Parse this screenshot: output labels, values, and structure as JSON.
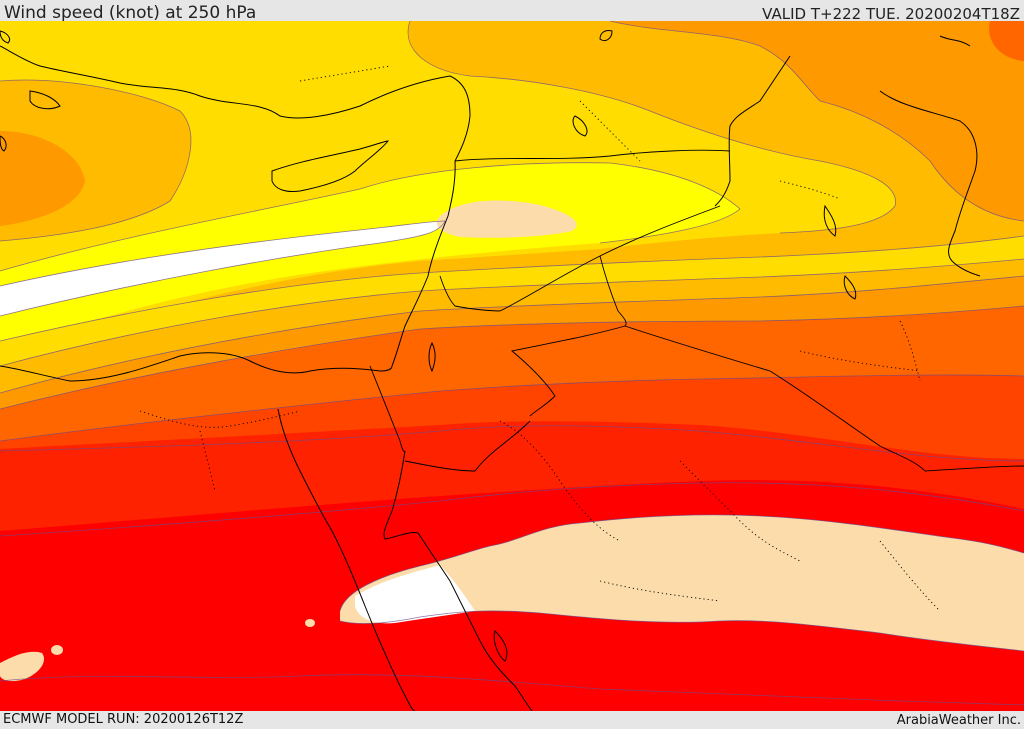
{
  "header": {
    "title": "Wind speed (knot) at 250 hPa",
    "valid": "VALID T+222 TUE. 20200204T18Z"
  },
  "footer": {
    "model_run": "ECMWF MODEL RUN: 20200126T12Z",
    "credit": "ArabiaWeather Inc."
  },
  "map": {
    "variable": "Wind speed",
    "unit": "knot",
    "level_hpa": 250,
    "region": "Eastern Mediterranean, Levant, Egypt and northern Arabia",
    "palette": {
      "band_white": "#ffffff",
      "band_peach": "#fcdcab",
      "band_yellow_bright": "#ffff00",
      "band_yellow": "#ffdd00",
      "band_gold": "#ffbb00",
      "band_orange_light": "#ff9900",
      "band_orange": "#ff6600",
      "band_orange_red": "#ff4400",
      "band_red_orange": "#ff2200",
      "band_red": "#ff0000",
      "coastline": "#000000",
      "border_dotted": "#000000"
    }
  }
}
